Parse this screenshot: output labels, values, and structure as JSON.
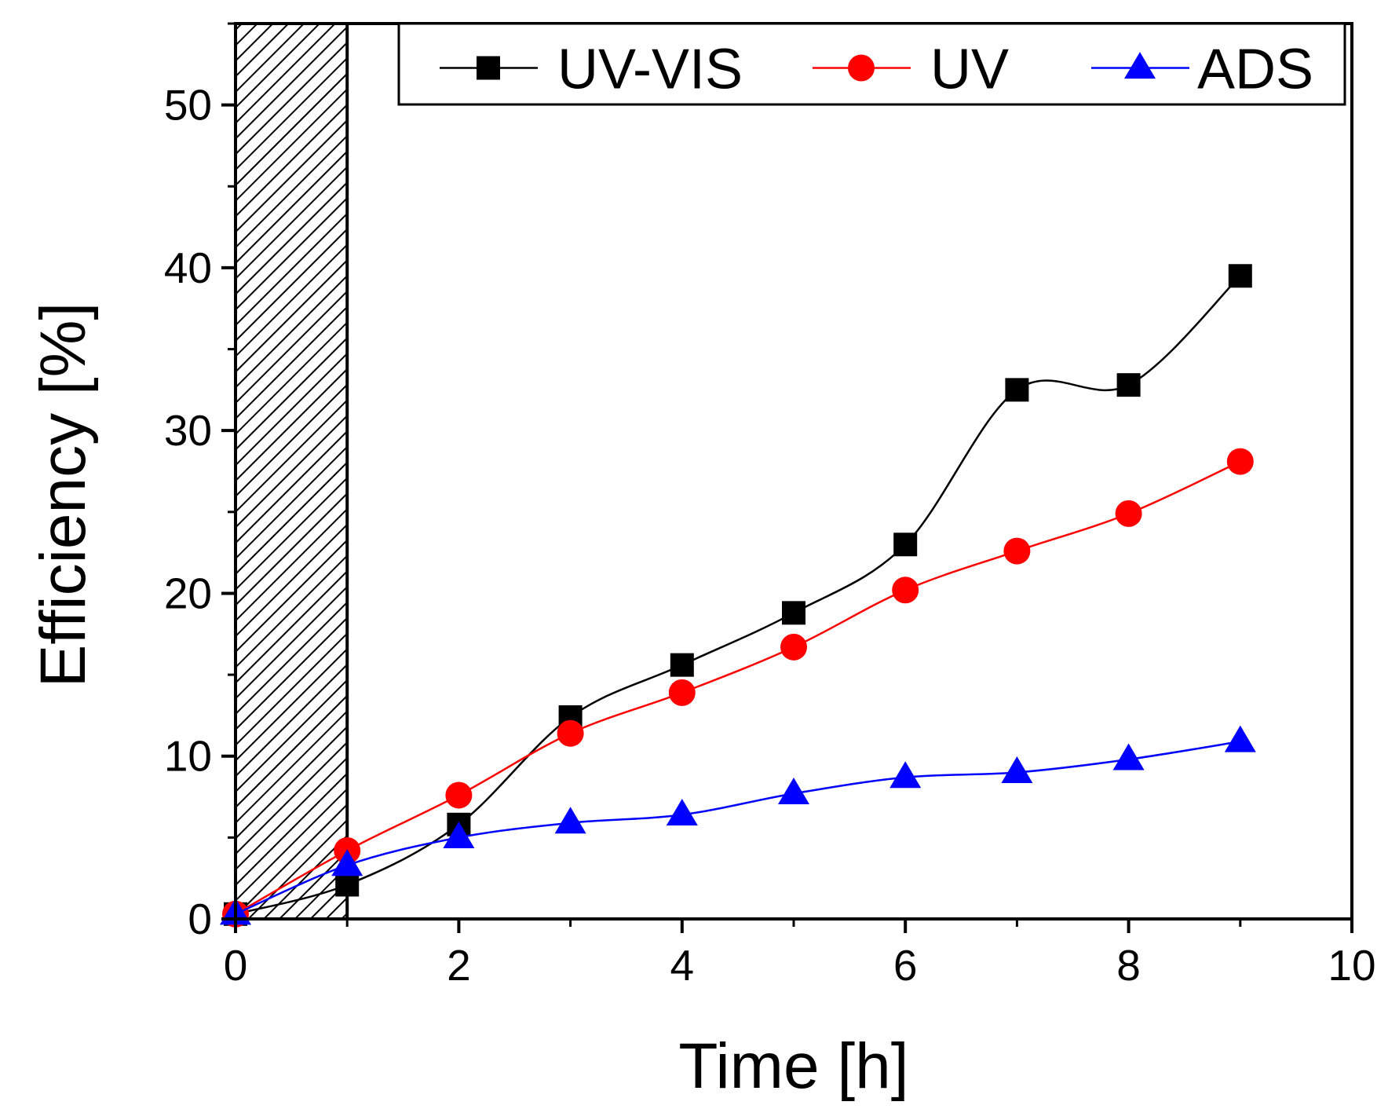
{
  "chart_data": {
    "type": "line",
    "title": "",
    "xlabel": "Time [h]",
    "ylabel": "Efficiency [%]",
    "xlim": [
      0,
      10
    ],
    "ylim": [
      0,
      55
    ],
    "xticks": [
      0,
      2,
      4,
      6,
      8,
      10
    ],
    "xtick_labels": [
      "0",
      "2",
      "4",
      "6",
      "8",
      "10"
    ],
    "yticks": [
      0,
      10,
      20,
      30,
      40,
      50
    ],
    "ytick_labels": [
      "0",
      "10",
      "20",
      "30",
      "40",
      "50"
    ],
    "grid": false,
    "legend_position": "top-right",
    "shaded_region": {
      "x_start": 0,
      "x_end": 1,
      "pattern": "diagonal-hatch"
    },
    "series": [
      {
        "name": "UV-VIS",
        "color": "#000000",
        "marker": "square",
        "x": [
          0,
          1,
          2,
          3,
          4,
          5,
          6,
          7,
          8,
          9
        ],
        "y": [
          0.3,
          2.1,
          5.8,
          12.4,
          15.6,
          18.8,
          23.0,
          32.5,
          32.8,
          39.5
        ]
      },
      {
        "name": "UV",
        "color": "#ff0000",
        "marker": "circle",
        "x": [
          0,
          1,
          2,
          3,
          4,
          5,
          6,
          7,
          8,
          9
        ],
        "y": [
          0.3,
          4.2,
          7.6,
          11.4,
          13.9,
          16.7,
          20.2,
          22.6,
          24.9,
          28.1
        ]
      },
      {
        "name": "ADS",
        "color": "#0000ff",
        "marker": "triangle",
        "x": [
          0,
          1,
          2,
          3,
          4,
          5,
          6,
          7,
          8,
          9
        ],
        "y": [
          0.3,
          3.3,
          5.0,
          5.9,
          6.4,
          7.7,
          8.7,
          9.0,
          9.8,
          10.9
        ]
      }
    ]
  }
}
